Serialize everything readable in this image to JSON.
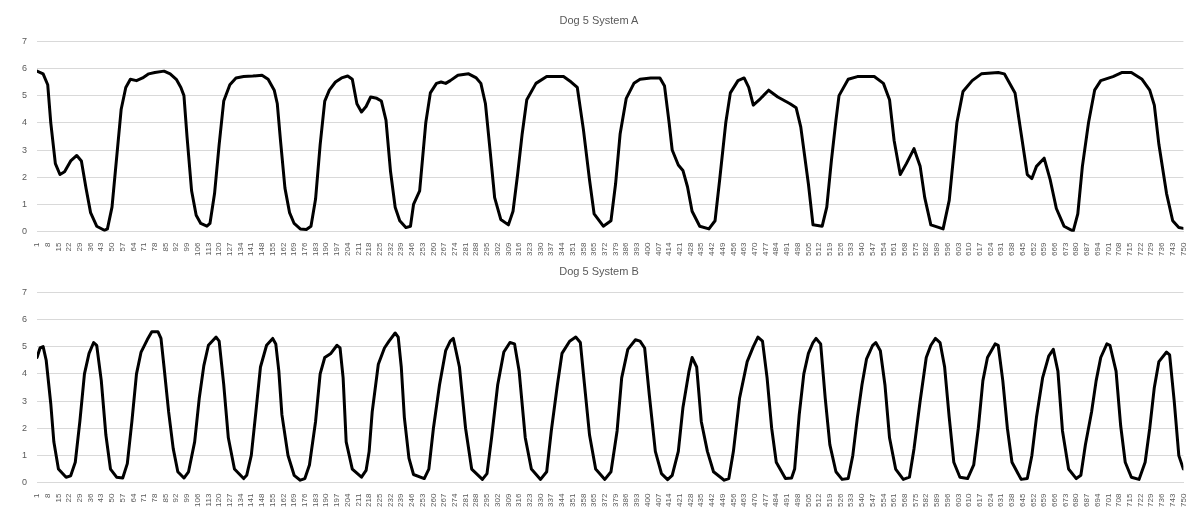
{
  "chart_data": [
    {
      "type": "line",
      "title": "Dog 5 System A",
      "xlim": [
        1,
        750
      ],
      "ylim": [
        0,
        7
      ],
      "yticks": [
        0,
        1,
        2,
        3,
        4,
        5,
        6,
        7
      ],
      "grid": "y",
      "marker": "none",
      "xticks": [
        1,
        8,
        15,
        22,
        29,
        36,
        43,
        50,
        57,
        64,
        71,
        78,
        85,
        92,
        99,
        106,
        113,
        120,
        127,
        134,
        141,
        148,
        155,
        162,
        169,
        176,
        183,
        190,
        197,
        204,
        211,
        218,
        225,
        232,
        239,
        246,
        253,
        260,
        267,
        274,
        281,
        288,
        295,
        302,
        309,
        316,
        323,
        330,
        337,
        344,
        351,
        358,
        365,
        372,
        379,
        386,
        393,
        400,
        407,
        414,
        421,
        428,
        435,
        442,
        449,
        456,
        463,
        470,
        477,
        484,
        491,
        498,
        505,
        512,
        519,
        526,
        533,
        540,
        547,
        554,
        561,
        568,
        575,
        582,
        589,
        596,
        603,
        610,
        617,
        624,
        631,
        638,
        645,
        652,
        659,
        666,
        673,
        680,
        687,
        694,
        701,
        708,
        715,
        722,
        729,
        736,
        743,
        750
      ],
      "series": [
        {
          "color": "#000000",
          "x": [
            1,
            5,
            8,
            10,
            13,
            16,
            19,
            23,
            27,
            30,
            33,
            36,
            40,
            45,
            47,
            50,
            53,
            56,
            59,
            62,
            66,
            70,
            74,
            78,
            84,
            88,
            92,
            95,
            97,
            99,
            102,
            105,
            108,
            112,
            114,
            117,
            120,
            123,
            127,
            131,
            136,
            142,
            148,
            152,
            156,
            158,
            160,
            163,
            166,
            169,
            173,
            177,
            180,
            183,
            186,
            189,
            192,
            196,
            200,
            204,
            207,
            210,
            213,
            216,
            219,
            223,
            226,
            229,
            232,
            235,
            238,
            242,
            245,
            247,
            251,
            255,
            258,
            262,
            265,
            268,
            271,
            276,
            283,
            288,
            291,
            294,
            297,
            300,
            304,
            309,
            312,
            315,
            318,
            321,
            327,
            334,
            345,
            350,
            354,
            358,
            362,
            365,
            371,
            376,
            379,
            382,
            386,
            391,
            395,
            402,
            408,
            411,
            414,
            416,
            420,
            423,
            426,
            429,
            434,
            440,
            444,
            447,
            451,
            454,
            459,
            463,
            466,
            469,
            473,
            479,
            485,
            493,
            497,
            500,
            505,
            508,
            514,
            517,
            520,
            523,
            525,
            531,
            537,
            548,
            554,
            558,
            561,
            565,
            569,
            574,
            578,
            581,
            585,
            593,
            597,
            602,
            606,
            612,
            618,
            629,
            633,
            640,
            644,
            648,
            651,
            654,
            659,
            663,
            667,
            672,
            678,
            681,
            684,
            688,
            692,
            696,
            704,
            710,
            716,
            723,
            728,
            731,
            734,
            739,
            743,
            747,
            750
          ],
          "values": [
            5.9,
            5.8,
            5.4,
            4.0,
            2.5,
            2.1,
            2.2,
            2.6,
            2.8,
            2.6,
            1.6,
            0.7,
            0.2,
            0.05,
            0.1,
            0.9,
            2.7,
            4.5,
            5.3,
            5.6,
            5.55,
            5.65,
            5.8,
            5.85,
            5.9,
            5.8,
            5.6,
            5.3,
            5.0,
            3.5,
            1.5,
            0.6,
            0.3,
            0.2,
            0.3,
            1.4,
            3.2,
            4.8,
            5.4,
            5.65,
            5.7,
            5.72,
            5.75,
            5.6,
            5.2,
            4.7,
            3.4,
            1.6,
            0.7,
            0.3,
            0.1,
            0.08,
            0.2,
            1.2,
            3.2,
            4.8,
            5.2,
            5.5,
            5.65,
            5.72,
            5.6,
            4.7,
            4.4,
            4.6,
            4.95,
            4.9,
            4.8,
            4.1,
            2.2,
            0.9,
            0.4,
            0.15,
            0.2,
            1.0,
            1.5,
            4.0,
            5.1,
            5.45,
            5.5,
            5.45,
            5.55,
            5.75,
            5.8,
            5.65,
            5.45,
            4.7,
            3.0,
            1.25,
            0.45,
            0.25,
            0.75,
            2.1,
            3.6,
            4.85,
            5.45,
            5.7,
            5.7,
            5.5,
            5.3,
            3.75,
            1.9,
            0.65,
            0.2,
            0.4,
            1.75,
            3.6,
            4.9,
            5.45,
            5.6,
            5.65,
            5.65,
            5.35,
            4.0,
            3.0,
            2.45,
            2.25,
            1.65,
            0.75,
            0.2,
            0.1,
            0.4,
            1.9,
            4.0,
            5.1,
            5.55,
            5.65,
            5.3,
            4.65,
            4.85,
            5.2,
            4.95,
            4.7,
            4.55,
            3.85,
            1.75,
            0.25,
            0.2,
            0.9,
            2.6,
            4.1,
            5.0,
            5.6,
            5.7,
            5.7,
            5.45,
            4.85,
            3.35,
            2.1,
            2.5,
            3.05,
            2.4,
            1.25,
            0.25,
            0.1,
            1.15,
            4.0,
            5.15,
            5.55,
            5.8,
            5.85,
            5.8,
            5.1,
            3.6,
            2.1,
            1.95,
            2.4,
            2.7,
            1.9,
            0.85,
            0.2,
            0.02,
            0.65,
            2.4,
            4.0,
            5.2,
            5.55,
            5.7,
            5.85,
            5.85,
            5.6,
            5.2,
            4.65,
            3.2,
            1.4,
            0.4,
            0.15,
            0.12
          ]
        }
      ]
    },
    {
      "type": "line",
      "title": "Dog 5 System B",
      "xlim": [
        1,
        750
      ],
      "ylim": [
        0,
        7
      ],
      "yticks": [
        0,
        1,
        2,
        3,
        4,
        5,
        6,
        7
      ],
      "grid": "y",
      "marker": "none",
      "xticks": [
        1,
        8,
        15,
        22,
        29,
        36,
        43,
        50,
        57,
        64,
        71,
        78,
        85,
        92,
        99,
        106,
        113,
        120,
        127,
        134,
        141,
        148,
        155,
        162,
        169,
        176,
        183,
        190,
        197,
        204,
        211,
        218,
        225,
        232,
        239,
        246,
        253,
        260,
        267,
        274,
        281,
        288,
        295,
        302,
        309,
        316,
        323,
        330,
        337,
        344,
        351,
        358,
        365,
        372,
        379,
        386,
        393,
        400,
        407,
        414,
        421,
        428,
        435,
        442,
        449,
        456,
        463,
        470,
        477,
        484,
        491,
        498,
        505,
        512,
        519,
        526,
        533,
        540,
        547,
        554,
        561,
        568,
        575,
        582,
        589,
        596,
        603,
        610,
        617,
        624,
        631,
        638,
        645,
        652,
        659,
        666,
        673,
        680,
        687,
        694,
        701,
        708,
        715,
        722,
        729,
        736,
        743,
        750
      ],
      "series": [
        {
          "color": "#000000",
          "x": [
            1,
            3,
            5,
            7,
            10,
            12,
            15,
            20,
            23,
            26,
            29,
            32,
            35,
            38,
            40,
            43,
            46,
            49,
            53,
            57,
            60,
            63,
            66,
            69,
            73,
            76,
            80,
            82,
            84,
            87,
            90,
            93,
            97,
            100,
            104,
            107,
            110,
            113,
            118,
            120,
            123,
            126,
            130,
            136,
            138,
            141,
            144,
            147,
            151,
            155,
            157,
            159,
            161,
            165,
            169,
            173,
            176,
            179,
            183,
            186,
            189,
            193,
            197,
            199,
            201,
            203,
            207,
            213,
            216,
            218,
            220,
            224,
            228,
            231,
            235,
            237,
            239,
            241,
            244,
            247,
            254,
            257,
            260,
            264,
            268,
            271,
            273,
            277,
            281,
            285,
            292,
            295,
            298,
            302,
            306,
            310,
            313,
            316,
            320,
            324,
            330,
            334,
            337,
            341,
            344,
            349,
            353,
            356,
            358,
            362,
            366,
            372,
            376,
            380,
            383,
            387,
            392,
            395,
            398,
            401,
            405,
            409,
            413,
            416,
            420,
            423,
            427,
            429,
            432,
            435,
            439,
            443,
            450,
            453,
            456,
            460,
            465,
            469,
            472,
            475,
            478,
            481,
            484,
            490,
            494,
            496,
            499,
            502,
            505,
            508,
            510,
            513,
            516,
            519,
            523,
            527,
            531,
            534,
            537,
            540,
            543,
            547,
            549,
            552,
            555,
            558,
            562,
            567,
            571,
            574,
            578,
            582,
            585,
            588,
            591,
            594,
            597,
            600,
            604,
            609,
            613,
            616,
            619,
            622,
            627,
            629,
            632,
            635,
            638,
            644,
            648,
            651,
            654,
            658,
            662,
            665,
            668,
            671,
            675,
            680,
            683,
            686,
            690,
            693,
            696,
            700,
            702,
            706,
            709,
            712,
            716,
            721,
            725,
            728,
            731,
            734,
            739,
            741,
            744,
            747,
            750
          ],
          "values": [
            4.6,
            4.95,
            5.0,
            4.5,
            2.9,
            1.5,
            0.5,
            0.2,
            0.25,
            0.75,
            2.25,
            4.0,
            4.75,
            5.15,
            5.05,
            3.75,
            1.75,
            0.5,
            0.2,
            0.17,
            0.7,
            2.25,
            4.0,
            4.8,
            5.25,
            5.55,
            5.55,
            5.3,
            4.25,
            2.6,
            1.25,
            0.4,
            0.17,
            0.4,
            1.5,
            3.1,
            4.3,
            5.05,
            5.35,
            5.2,
            3.6,
            1.65,
            0.5,
            0.15,
            0.27,
            1.0,
            2.6,
            4.25,
            5.05,
            5.3,
            5.1,
            4.1,
            2.5,
            1.0,
            0.27,
            0.09,
            0.15,
            0.65,
            2.25,
            4.0,
            4.6,
            4.75,
            5.05,
            4.95,
            3.85,
            1.5,
            0.5,
            0.2,
            0.45,
            1.15,
            2.6,
            4.35,
            4.95,
            5.2,
            5.5,
            5.35,
            4.25,
            2.4,
            0.9,
            0.3,
            0.15,
            0.5,
            2.0,
            3.6,
            4.85,
            5.2,
            5.3,
            4.25,
            2.0,
            0.5,
            0.12,
            0.33,
            1.65,
            3.6,
            4.8,
            5.15,
            5.1,
            4.1,
            1.65,
            0.5,
            0.12,
            0.4,
            1.9,
            3.6,
            4.75,
            5.2,
            5.35,
            5.15,
            4.0,
            1.75,
            0.5,
            0.12,
            0.4,
            1.9,
            3.85,
            4.9,
            5.25,
            5.2,
            4.95,
            3.25,
            1.15,
            0.33,
            0.11,
            0.27,
            1.15,
            2.75,
            4.1,
            4.6,
            4.25,
            2.25,
            1.15,
            0.4,
            0.09,
            0.15,
            1.15,
            3.1,
            4.45,
            5.0,
            5.35,
            5.2,
            3.85,
            2.0,
            0.75,
            0.15,
            0.17,
            0.5,
            2.5,
            4.0,
            4.75,
            5.15,
            5.3,
            5.1,
            3.1,
            1.4,
            0.4,
            0.12,
            0.15,
            1.0,
            2.4,
            3.6,
            4.55,
            5.05,
            5.15,
            4.85,
            3.6,
            1.65,
            0.5,
            0.12,
            0.2,
            1.25,
            3.0,
            4.6,
            5.05,
            5.3,
            5.15,
            4.25,
            2.4,
            0.75,
            0.2,
            0.15,
            0.65,
            2.0,
            3.75,
            4.6,
            5.1,
            5.05,
            3.75,
            2.0,
            0.75,
            0.12,
            0.15,
            1.0,
            2.4,
            3.85,
            4.65,
            4.9,
            4.1,
            1.9,
            0.5,
            0.15,
            0.27,
            1.4,
            2.6,
            3.75,
            4.6,
            5.1,
            5.05,
            4.1,
            2.1,
            0.75,
            0.2,
            0.12,
            0.75,
            2.0,
            3.5,
            4.45,
            4.8,
            4.7,
            3.0,
            1.0,
            0.5
          ]
        }
      ]
    }
  ]
}
